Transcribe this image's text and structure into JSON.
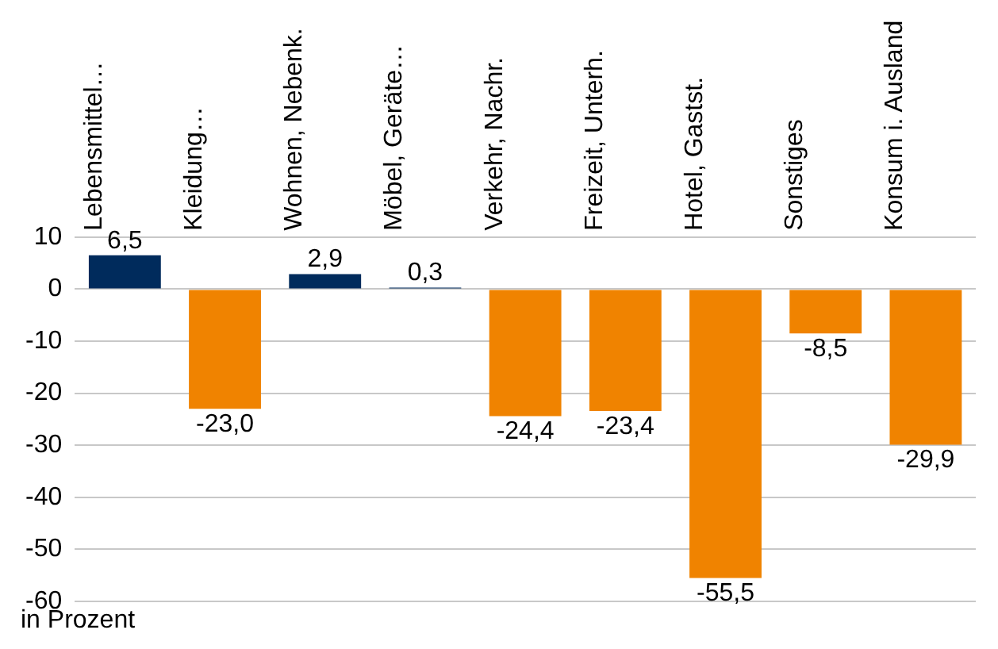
{
  "chart_data": {
    "type": "bar",
    "categories": [
      "Lebensmittel…",
      "Kleidung…",
      "Wohnen, Nebenk.",
      "Möbel, Geräte…",
      "Verkehr, Nachr.",
      "Freizeit, Unterh.",
      "Hotel, Gastst.",
      "Sonstiges",
      "Konsum i. Ausland"
    ],
    "values": [
      6.5,
      -23.0,
      2.9,
      0.3,
      -24.4,
      -23.4,
      -55.5,
      -8.5,
      -29.9
    ],
    "colors": [
      "#002b5c",
      "#f08300",
      "#002b5c",
      "#002b5c",
      "#f08300",
      "#f08300",
      "#f08300",
      "#f08300",
      "#f08300"
    ],
    "value_labels": [
      "6,5",
      "-23,0",
      "2,9",
      "0,3",
      "-24,4",
      "-23,4",
      "-55,5",
      "-8,5",
      "-29,9"
    ],
    "ylim": [
      -60,
      10
    ],
    "yticks": [
      -60,
      -50,
      -40,
      -30,
      -20,
      -10,
      0,
      10
    ],
    "grid": "y",
    "legend": false,
    "annotations": [
      "in Prozent"
    ]
  }
}
